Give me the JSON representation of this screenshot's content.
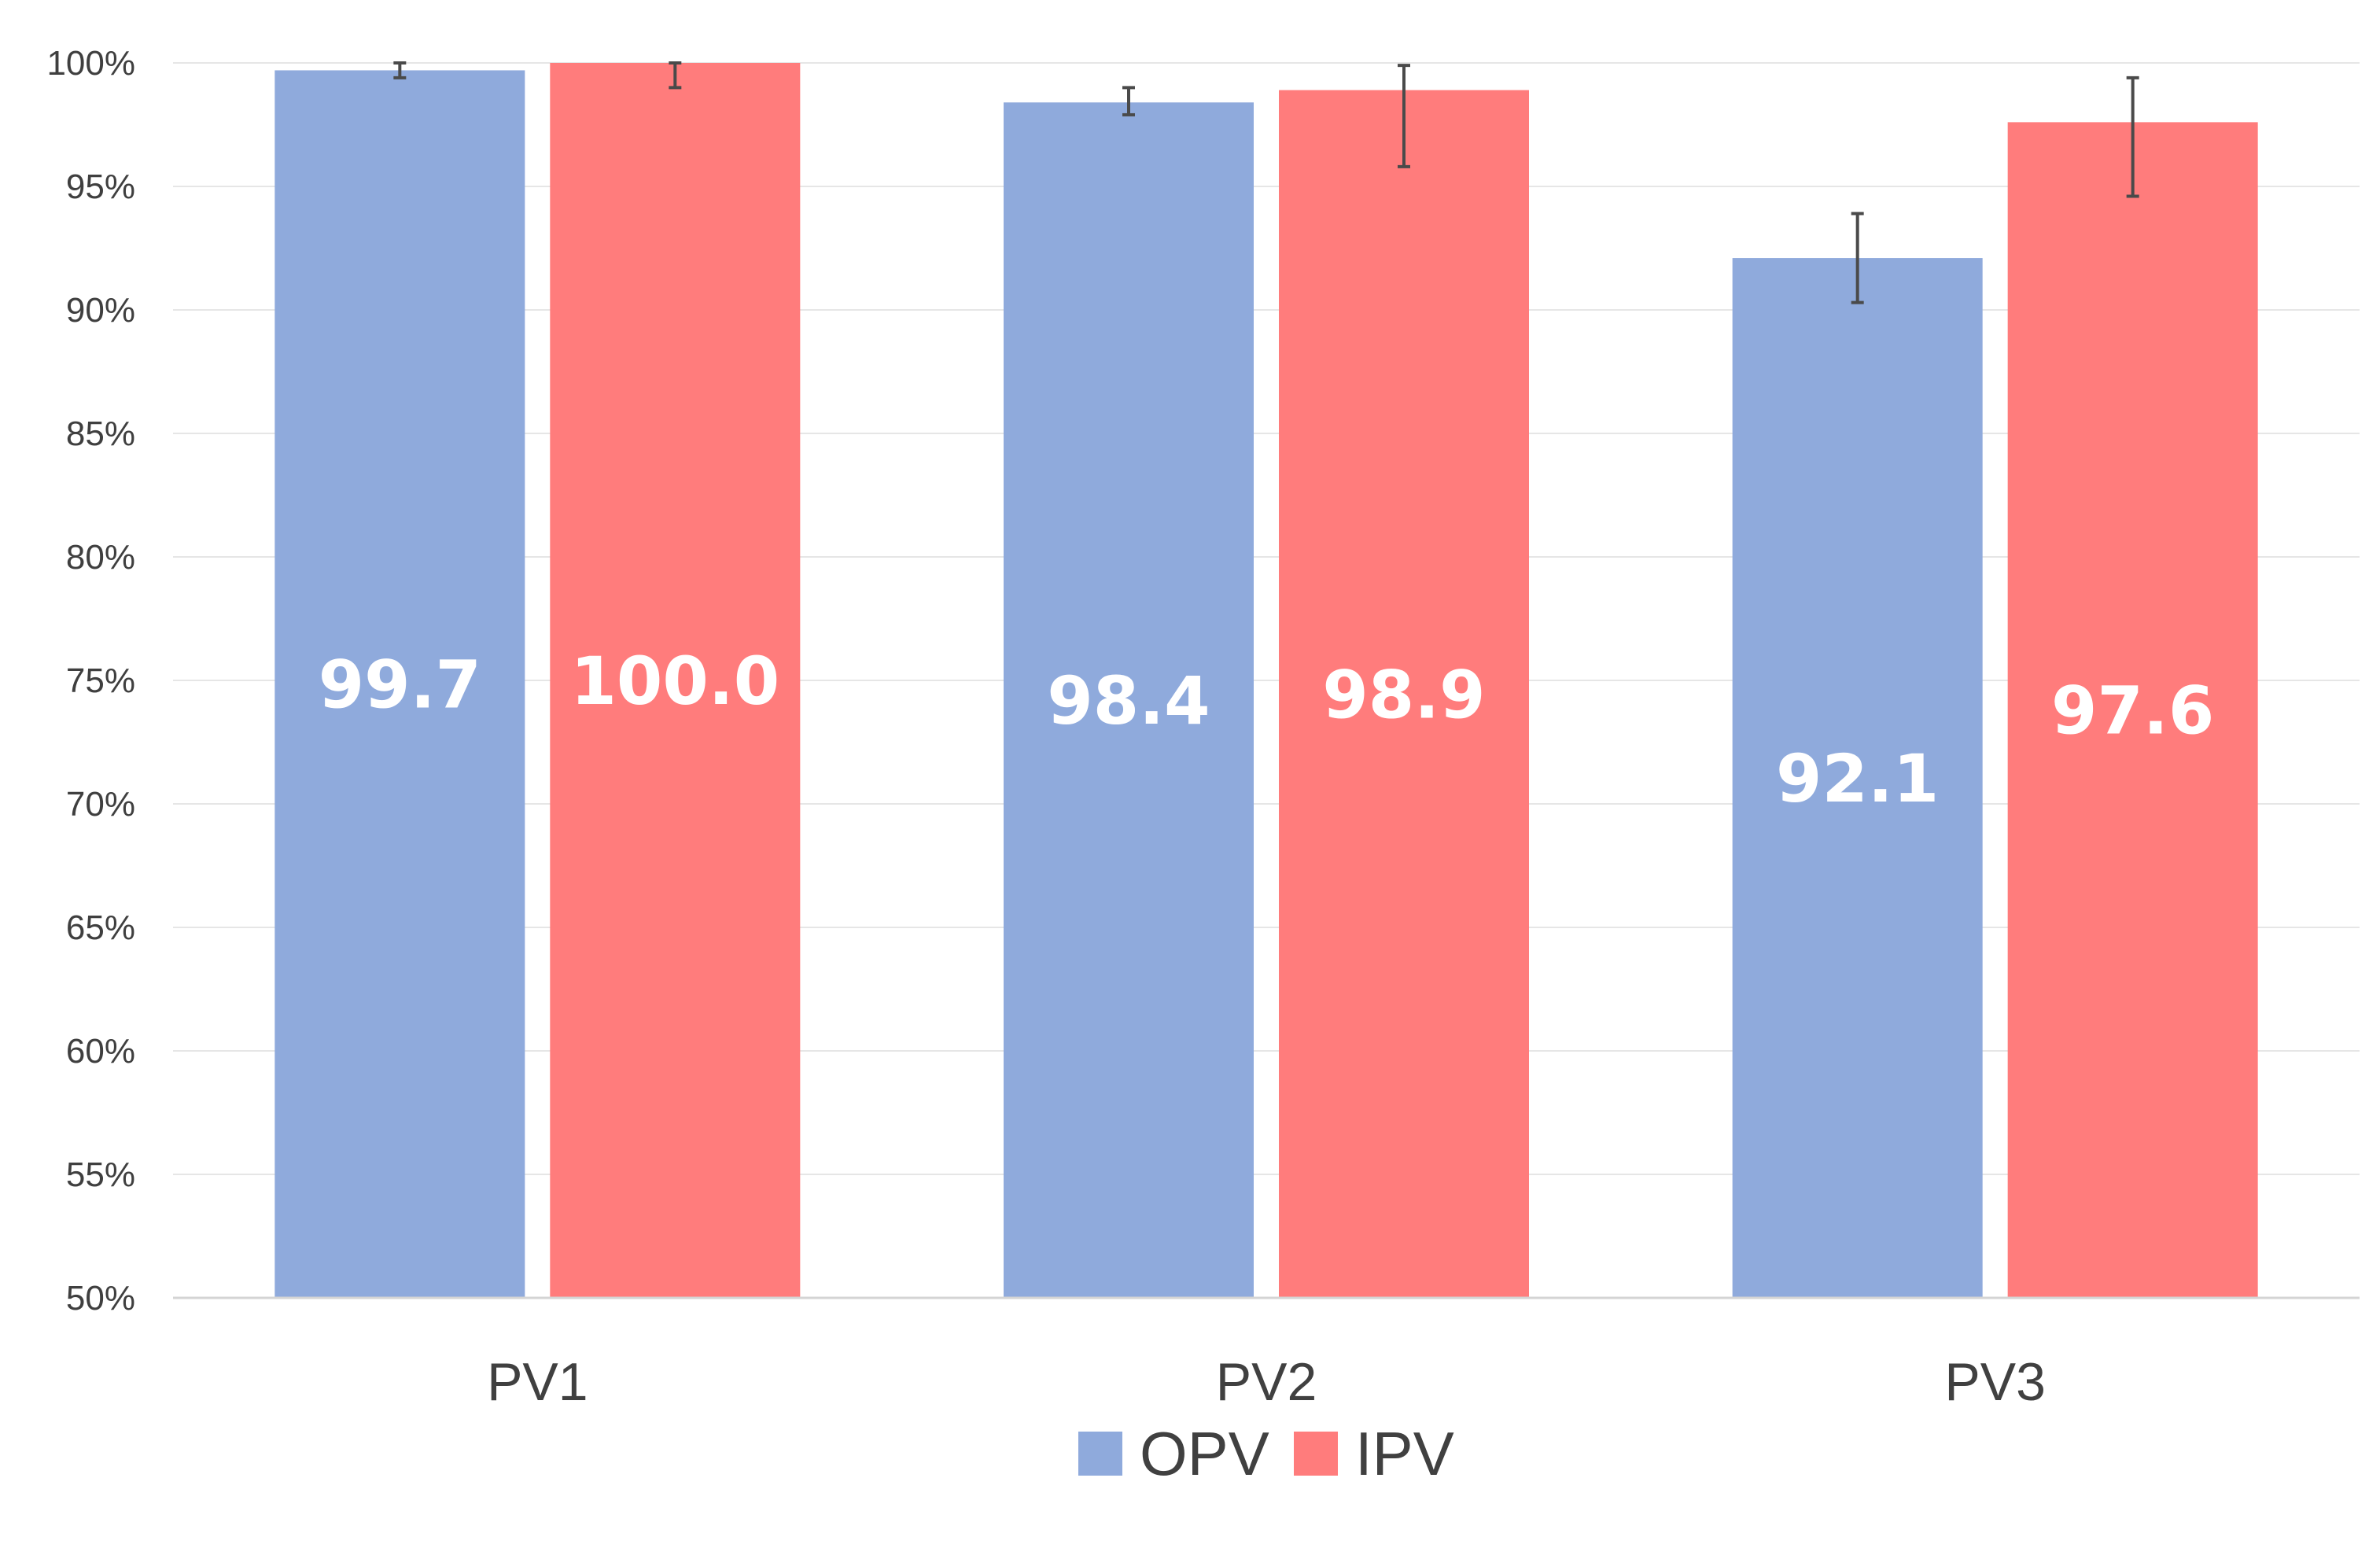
{
  "chart_data": {
    "type": "bar",
    "title": "",
    "xlabel": "",
    "ylabel": "",
    "categories": [
      "PV1",
      "PV2",
      "PV3"
    ],
    "ylim": [
      50,
      100
    ],
    "ytick_step": 5,
    "ytick_suffix": "%",
    "grid": true,
    "legend_position": "bottom-center",
    "series": [
      {
        "name": "OPV",
        "color": "#8faadc",
        "values": [
          99.7,
          98.4,
          92.1
        ],
        "labels": [
          "99.7",
          "98.4",
          "92.1"
        ],
        "error_low": [
          99.4,
          97.9,
          90.3
        ],
        "error_high": [
          100.0,
          99.0,
          93.9
        ]
      },
      {
        "name": "IPV",
        "color": "#ff7c7c",
        "values": [
          100.0,
          98.9,
          97.6
        ],
        "labels": [
          "100.0",
          "98.9",
          "97.6"
        ],
        "error_low": [
          99.0,
          95.8,
          94.6
        ],
        "error_high": [
          100.0,
          99.9,
          99.4
        ]
      }
    ]
  }
}
